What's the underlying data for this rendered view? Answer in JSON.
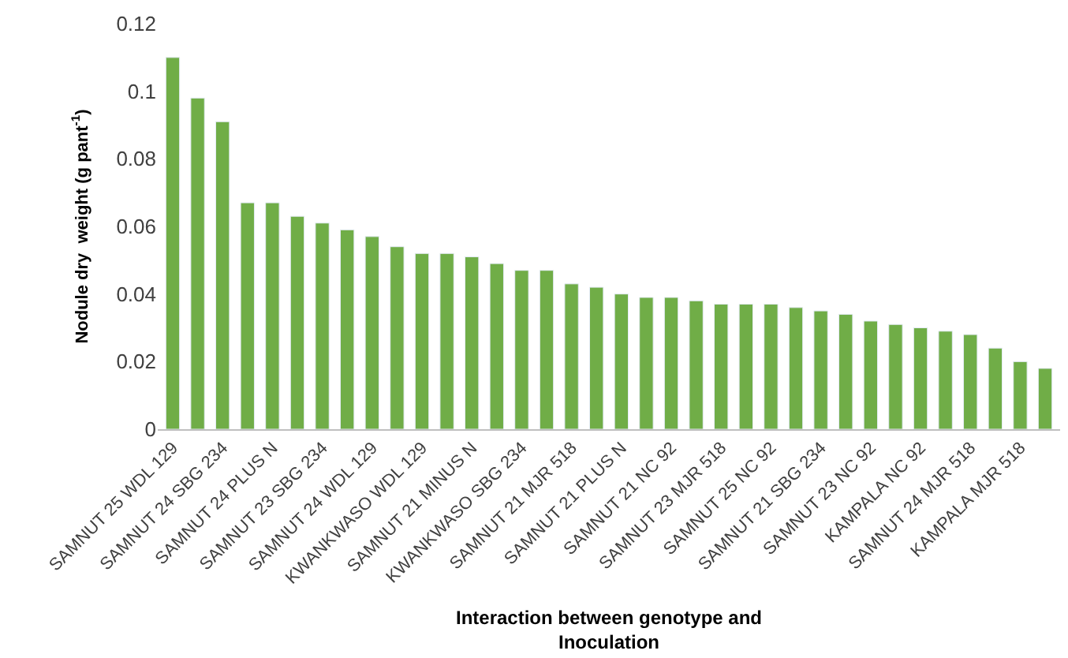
{
  "chart_data": {
    "type": "bar",
    "xlabel": "Interaction between genotype and\nInoculation",
    "ylabel": "Nodule dry  weight (g pant$^{-1}$)",
    "categories": [
      "SAMNUT 25 WDL 129",
      null,
      "SAMNUT 24 SBG 234",
      null,
      "SAMNUT 24 PLUS N",
      null,
      "SAMNUT 23 SBG 234",
      null,
      "SAMNUT 24 WDL 129",
      null,
      "KWANKWASO WDL 129",
      null,
      "SAMNUT 21 MINUS N",
      null,
      "KWANKWASO SBG 234",
      null,
      "SAMNUT 21 MJR 518",
      null,
      "SAMNUT 21 PLUS N",
      null,
      "SAMNUT 21 NC 92",
      null,
      "SAMNUT 23 MJR 518",
      null,
      "SAMNUT 25 NC 92",
      null,
      "SAMNUT 21 SBG 234",
      null,
      "SAMNUT 23 NC 92",
      null,
      "KAMPALA NC 92",
      null,
      "SAMNUT 24 MJR 518",
      null,
      "KAMPALA MJR 518",
      null
    ],
    "values": [
      0.11,
      0.098,
      0.091,
      0.067,
      0.067,
      0.063,
      0.061,
      0.059,
      0.057,
      0.054,
      0.052,
      0.052,
      0.051,
      0.049,
      0.047,
      0.047,
      0.043,
      0.042,
      0.04,
      0.039,
      0.039,
      0.038,
      0.037,
      0.037,
      0.037,
      0.036,
      0.035,
      0.034,
      0.032,
      0.031,
      0.03,
      0.029,
      0.028,
      0.024,
      0.02,
      0.018
    ],
    "color": "#70ad47",
    "ylim": [
      0,
      0.12
    ],
    "yticks": [
      0,
      0.02,
      0.04,
      0.06,
      0.08,
      0.1,
      0.12
    ]
  }
}
